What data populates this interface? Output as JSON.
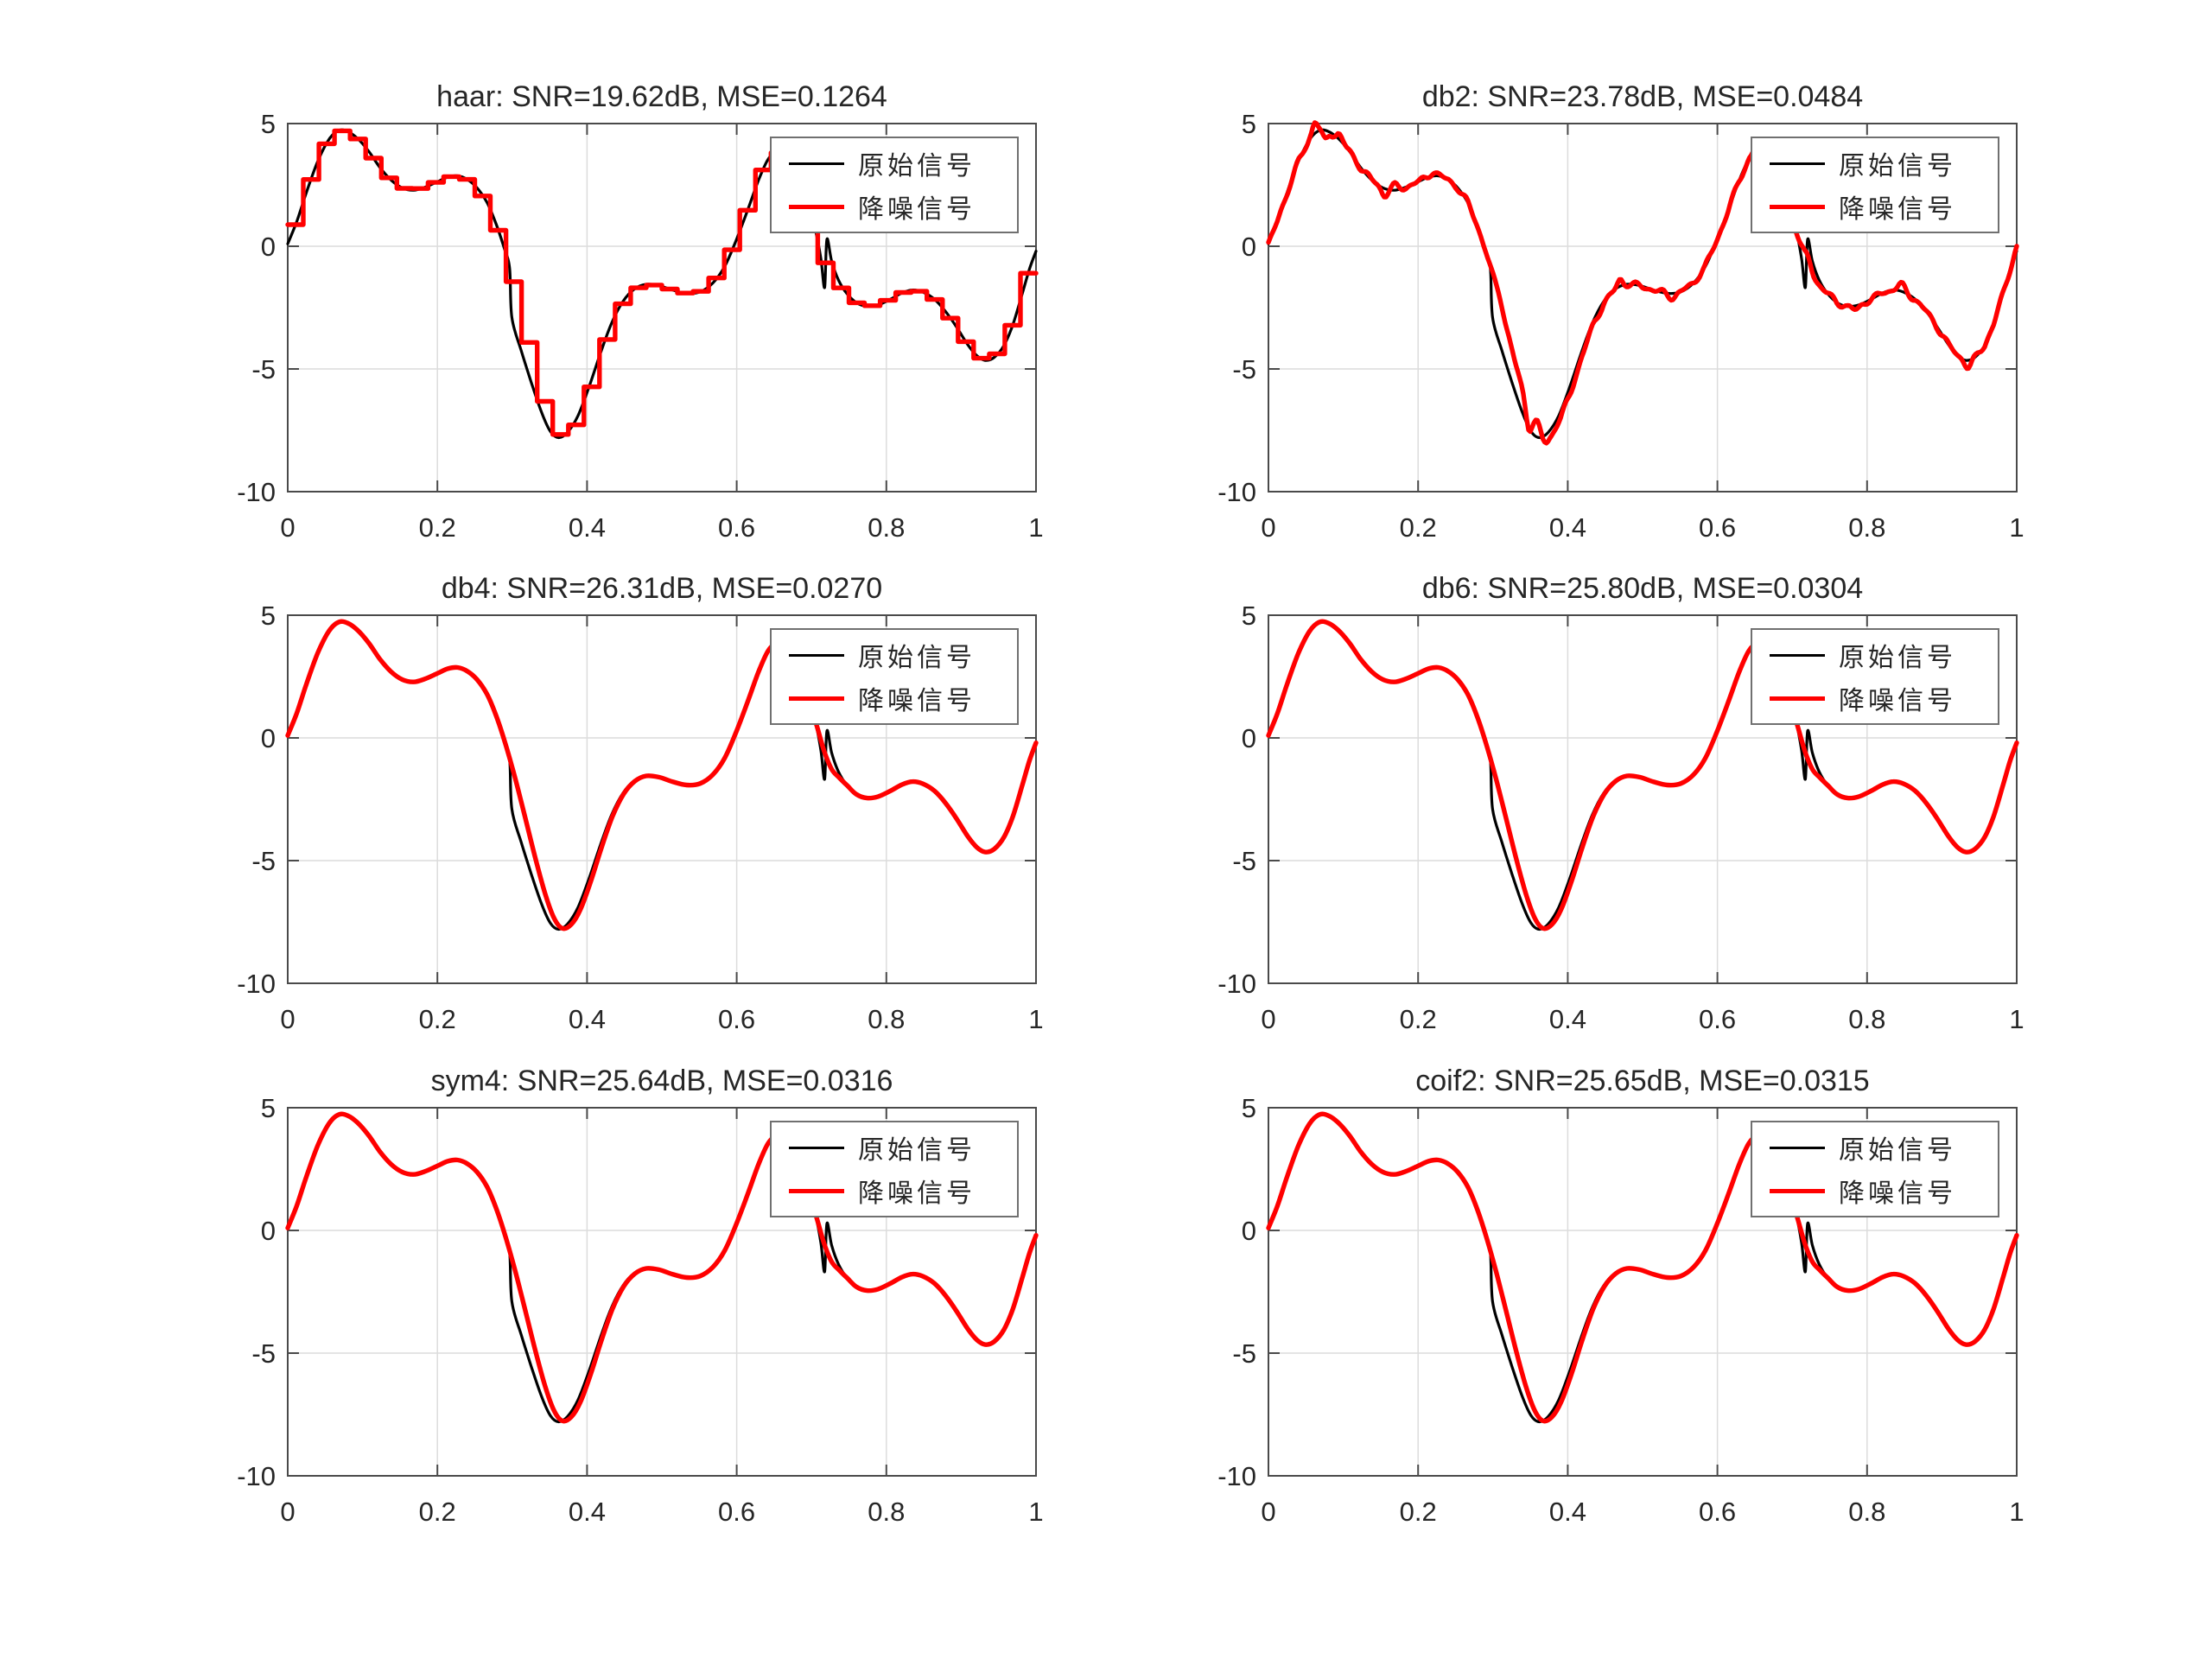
{
  "figure": {
    "background": "#ffffff"
  },
  "legend": {
    "items": [
      {
        "label": "原始信号",
        "color": "#000000",
        "line_width": 3.2
      },
      {
        "label": "降噪信号",
        "color": "#ff0000",
        "line_width": 5.4
      }
    ]
  },
  "chart_data": {
    "type": "line",
    "layout": "2x3 grid of subplots, shared signal",
    "xlim": [
      0,
      1
    ],
    "ylim": [
      -10,
      5
    ],
    "x_ticks": [
      0,
      0.2,
      0.4,
      0.6,
      0.8,
      1
    ],
    "x_tick_labels": [
      "0",
      "0.2",
      "0.4",
      "0.6",
      "0.8",
      "1"
    ],
    "y_ticks": [
      5,
      0,
      -5,
      -10
    ],
    "y_tick_labels": [
      "5",
      "0",
      "-5",
      "-10"
    ],
    "grid": true,
    "legend_position": "upper-right",
    "colors": {
      "original": "#000000",
      "denoised": "#ff0000",
      "grid": "#dcdcdc",
      "axis": "#4a4a4a",
      "text": "#262626"
    },
    "series_names": [
      "原始信号",
      "降噪信号"
    ],
    "original_signal": [
      [
        0.0,
        0.1
      ],
      [
        0.012,
        1.0
      ],
      [
        0.025,
        2.2
      ],
      [
        0.04,
        3.45
      ],
      [
        0.055,
        4.35
      ],
      [
        0.068,
        4.72
      ],
      [
        0.08,
        4.68
      ],
      [
        0.093,
        4.4
      ],
      [
        0.108,
        3.88
      ],
      [
        0.123,
        3.22
      ],
      [
        0.138,
        2.7
      ],
      [
        0.153,
        2.38
      ],
      [
        0.168,
        2.28
      ],
      [
        0.183,
        2.4
      ],
      [
        0.2,
        2.63
      ],
      [
        0.214,
        2.82
      ],
      [
        0.227,
        2.87
      ],
      [
        0.24,
        2.72
      ],
      [
        0.253,
        2.38
      ],
      [
        0.266,
        1.8
      ],
      [
        0.278,
        0.95
      ],
      [
        0.289,
        -0.05
      ],
      [
        0.2965,
        -0.9
      ],
      [
        0.2995,
        -2.9
      ],
      [
        0.312,
        -4.25
      ],
      [
        0.325,
        -5.5
      ],
      [
        0.339,
        -6.75
      ],
      [
        0.351,
        -7.55
      ],
      [
        0.362,
        -7.8
      ],
      [
        0.374,
        -7.58
      ],
      [
        0.388,
        -6.9
      ],
      [
        0.403,
        -5.7
      ],
      [
        0.418,
        -4.35
      ],
      [
        0.433,
        -3.12
      ],
      [
        0.448,
        -2.25
      ],
      [
        0.463,
        -1.75
      ],
      [
        0.479,
        -1.55
      ],
      [
        0.496,
        -1.6
      ],
      [
        0.514,
        -1.78
      ],
      [
        0.533,
        -1.92
      ],
      [
        0.551,
        -1.86
      ],
      [
        0.568,
        -1.5
      ],
      [
        0.584,
        -0.82
      ],
      [
        0.599,
        0.22
      ],
      [
        0.614,
        1.42
      ],
      [
        0.629,
        2.68
      ],
      [
        0.642,
        3.55
      ],
      [
        0.654,
        3.85
      ],
      [
        0.667,
        3.62
      ],
      [
        0.679,
        2.95
      ],
      [
        0.693,
        1.85
      ],
      [
        0.705,
        0.68
      ],
      [
        0.7125,
        -0.5
      ],
      [
        0.7175,
        -1.68
      ],
      [
        0.7205,
        0.28
      ],
      [
        0.727,
        -0.62
      ],
      [
        0.736,
        -1.38
      ],
      [
        0.747,
        -1.92
      ],
      [
        0.76,
        -2.3
      ],
      [
        0.774,
        -2.45
      ],
      [
        0.789,
        -2.39
      ],
      [
        0.806,
        -2.15
      ],
      [
        0.821,
        -1.9
      ],
      [
        0.835,
        -1.78
      ],
      [
        0.849,
        -1.87
      ],
      [
        0.864,
        -2.15
      ],
      [
        0.879,
        -2.65
      ],
      [
        0.894,
        -3.3
      ],
      [
        0.909,
        -4.02
      ],
      [
        0.921,
        -4.46
      ],
      [
        0.932,
        -4.65
      ],
      [
        0.944,
        -4.53
      ],
      [
        0.957,
        -4.05
      ],
      [
        0.969,
        -3.2
      ],
      [
        0.981,
        -2.0
      ],
      [
        0.991,
        -0.95
      ],
      [
        1.0,
        -0.2
      ]
    ],
    "denoised_base": [
      [
        0.0,
        0.1
      ],
      [
        0.012,
        1.0
      ],
      [
        0.025,
        2.2
      ],
      [
        0.04,
        3.45
      ],
      [
        0.055,
        4.35
      ],
      [
        0.068,
        4.72
      ],
      [
        0.08,
        4.68
      ],
      [
        0.093,
        4.4
      ],
      [
        0.108,
        3.88
      ],
      [
        0.123,
        3.22
      ],
      [
        0.138,
        2.7
      ],
      [
        0.153,
        2.38
      ],
      [
        0.168,
        2.28
      ],
      [
        0.183,
        2.4
      ],
      [
        0.2,
        2.63
      ],
      [
        0.214,
        2.82
      ],
      [
        0.227,
        2.87
      ],
      [
        0.24,
        2.72
      ],
      [
        0.253,
        2.38
      ],
      [
        0.266,
        1.8
      ],
      [
        0.278,
        0.95
      ],
      [
        0.291,
        -0.25
      ],
      [
        0.304,
        -1.65
      ],
      [
        0.317,
        -3.2
      ],
      [
        0.331,
        -4.9
      ],
      [
        0.344,
        -6.35
      ],
      [
        0.356,
        -7.35
      ],
      [
        0.367,
        -7.76
      ],
      [
        0.379,
        -7.6
      ],
      [
        0.391,
        -7.0
      ],
      [
        0.405,
        -5.85
      ],
      [
        0.419,
        -4.5
      ],
      [
        0.434,
        -3.2
      ],
      [
        0.449,
        -2.28
      ],
      [
        0.464,
        -1.76
      ],
      [
        0.479,
        -1.55
      ],
      [
        0.496,
        -1.6
      ],
      [
        0.514,
        -1.78
      ],
      [
        0.533,
        -1.92
      ],
      [
        0.551,
        -1.86
      ],
      [
        0.568,
        -1.5
      ],
      [
        0.584,
        -0.82
      ],
      [
        0.599,
        0.22
      ],
      [
        0.614,
        1.42
      ],
      [
        0.629,
        2.68
      ],
      [
        0.642,
        3.55
      ],
      [
        0.654,
        3.85
      ],
      [
        0.667,
        3.62
      ],
      [
        0.679,
        2.95
      ],
      [
        0.693,
        1.85
      ],
      [
        0.706,
        0.6
      ],
      [
        0.717,
        -0.55
      ],
      [
        0.727,
        -1.28
      ],
      [
        0.737,
        -1.62
      ],
      [
        0.748,
        -1.95
      ],
      [
        0.76,
        -2.3
      ],
      [
        0.774,
        -2.45
      ],
      [
        0.789,
        -2.39
      ],
      [
        0.806,
        -2.15
      ],
      [
        0.821,
        -1.9
      ],
      [
        0.835,
        -1.78
      ],
      [
        0.849,
        -1.87
      ],
      [
        0.864,
        -2.15
      ],
      [
        0.879,
        -2.65
      ],
      [
        0.894,
        -3.3
      ],
      [
        0.909,
        -4.02
      ],
      [
        0.921,
        -4.46
      ],
      [
        0.932,
        -4.65
      ],
      [
        0.944,
        -4.53
      ],
      [
        0.957,
        -4.05
      ],
      [
        0.969,
        -3.2
      ],
      [
        0.981,
        -2.0
      ],
      [
        0.991,
        -0.95
      ],
      [
        1.0,
        -0.2
      ]
    ],
    "subplots": [
      {
        "id": "haar",
        "title": "haar: SNR=19.62dB, MSE=0.1264",
        "wavelet": "haar",
        "snr_db": 19.62,
        "mse": 0.1264,
        "denoise_style": "staircase",
        "steps": 48
      },
      {
        "id": "db2",
        "title": "db2: SNR=23.78dB, MSE=0.0484",
        "wavelet": "db2",
        "snr_db": 23.78,
        "mse": 0.0484,
        "denoise_style": "jittery",
        "jitter": {
          "sines": [
            [
              31,
              0.08,
              0.0
            ],
            [
              53,
              0.06,
              1.7
            ]
          ],
          "spikes": [
            [
              0.062,
              0.55,
              0.0035
            ],
            [
              0.076,
              -0.4,
              0.0035
            ],
            [
              0.095,
              0.22,
              0.004
            ],
            [
              0.155,
              -0.3,
              0.004
            ],
            [
              0.168,
              0.18,
              0.004
            ],
            [
              0.22,
              0.2,
              0.004
            ],
            [
              0.31,
              0.25,
              0.004
            ],
            [
              0.348,
              -0.7,
              0.0035
            ],
            [
              0.359,
              0.28,
              0.0035
            ],
            [
              0.372,
              -0.3,
              0.004
            ],
            [
              0.47,
              0.32,
              0.0035
            ],
            [
              0.54,
              -0.18,
              0.005
            ],
            [
              0.652,
              0.3,
              0.004
            ],
            [
              0.668,
              -0.25,
              0.004
            ],
            [
              0.722,
              0.4,
              0.005
            ],
            [
              0.785,
              -0.2,
              0.005
            ],
            [
              0.845,
              0.28,
              0.005
            ],
            [
              0.936,
              -0.32,
              0.004
            ],
            [
              0.999,
              0.15,
              0.004
            ]
          ]
        }
      },
      {
        "id": "db4",
        "title": "db4: SNR=26.31dB, MSE=0.0270",
        "wavelet": "db4",
        "snr_db": 26.31,
        "mse": 0.027,
        "denoise_style": "smooth"
      },
      {
        "id": "db6",
        "title": "db6: SNR=25.80dB, MSE=0.0304",
        "wavelet": "db6",
        "snr_db": 25.8,
        "mse": 0.0304,
        "denoise_style": "smooth"
      },
      {
        "id": "sym4",
        "title": "sym4: SNR=25.64dB, MSE=0.0316",
        "wavelet": "sym4",
        "snr_db": 25.64,
        "mse": 0.0316,
        "denoise_style": "smooth"
      },
      {
        "id": "coif2",
        "title": "coif2: SNR=25.65dB, MSE=0.0315",
        "wavelet": "coif2",
        "snr_db": 25.65,
        "mse": 0.0315,
        "denoise_style": "smooth"
      }
    ]
  }
}
